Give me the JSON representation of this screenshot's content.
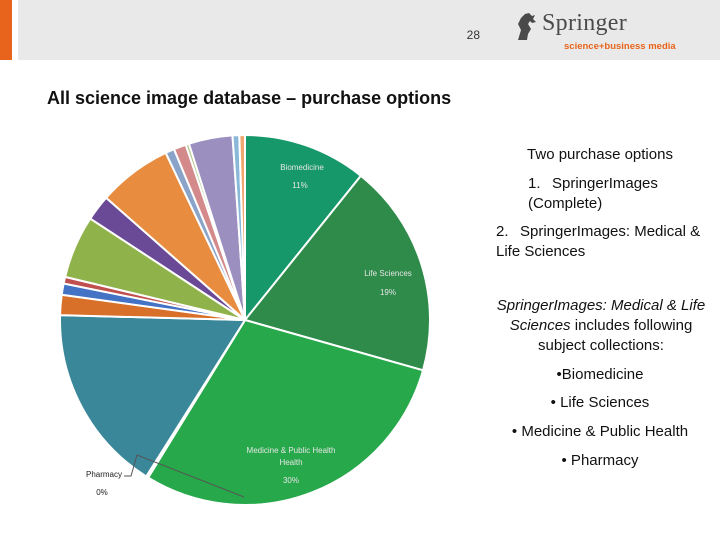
{
  "header": {
    "page_number": "28",
    "logo_name": "Springer",
    "logo_tagline": "science+business media",
    "accent_color": "#e8641c"
  },
  "title": "All science image database – purchase options",
  "right_panel": {
    "heading": "Two purchase options",
    "options": [
      {
        "num": "1.",
        "text": "SpringerImages (Complete)"
      },
      {
        "num": "2.",
        "text": "SpringerImages: Medical & Life Sciences"
      }
    ],
    "description_italic": "SpringerImages: Medical & Life Sciences",
    "description_rest": " includes following subject collections:",
    "bullets": [
      "•Biomedicine",
      "• Life Sciences",
      "• Medicine & Public Health",
      "• Pharmacy"
    ]
  },
  "chart_data": {
    "type": "pie",
    "labels": [
      {
        "name": "Biomedicine",
        "value_label": "11%"
      },
      {
        "name": "Life Sciences",
        "value_label": "19%"
      },
      {
        "name": "Medicine & Public Health",
        "value_label": "30%"
      },
      {
        "name": "Pharmacy",
        "value_label": "0%"
      }
    ],
    "slices": [
      {
        "label": "Biomedicine",
        "value": 11,
        "color": "#16986a"
      },
      {
        "label": "Life Sciences",
        "value": 19,
        "color": "#2e8b4a"
      },
      {
        "label": "Medicine & Public Health",
        "value": 30,
        "color": "#27a84a"
      },
      {
        "label": "Pharmacy",
        "value": 0.2,
        "color": "#ffffff"
      },
      {
        "value": 16.8,
        "color": "#3a879a"
      },
      {
        "value": 1.8,
        "color": "#d9702a"
      },
      {
        "value": 1.0,
        "color": "#4472c4"
      },
      {
        "value": 0.6,
        "color": "#c0504d"
      },
      {
        "value": 5.6,
        "color": "#8fb24a"
      },
      {
        "value": 2.3,
        "color": "#6a4a96"
      },
      {
        "value": 6.6,
        "color": "#e88d40"
      },
      {
        "value": 0.8,
        "color": "#8aa3c8"
      },
      {
        "value": 1.1,
        "color": "#d48a8a"
      },
      {
        "value": 0.3,
        "color": "#b4c88a"
      },
      {
        "value": 3.9,
        "color": "#9b8fc0"
      },
      {
        "value": 0.6,
        "color": "#8ab8d8"
      },
      {
        "value": 0.5,
        "color": "#f0a870"
      }
    ]
  }
}
